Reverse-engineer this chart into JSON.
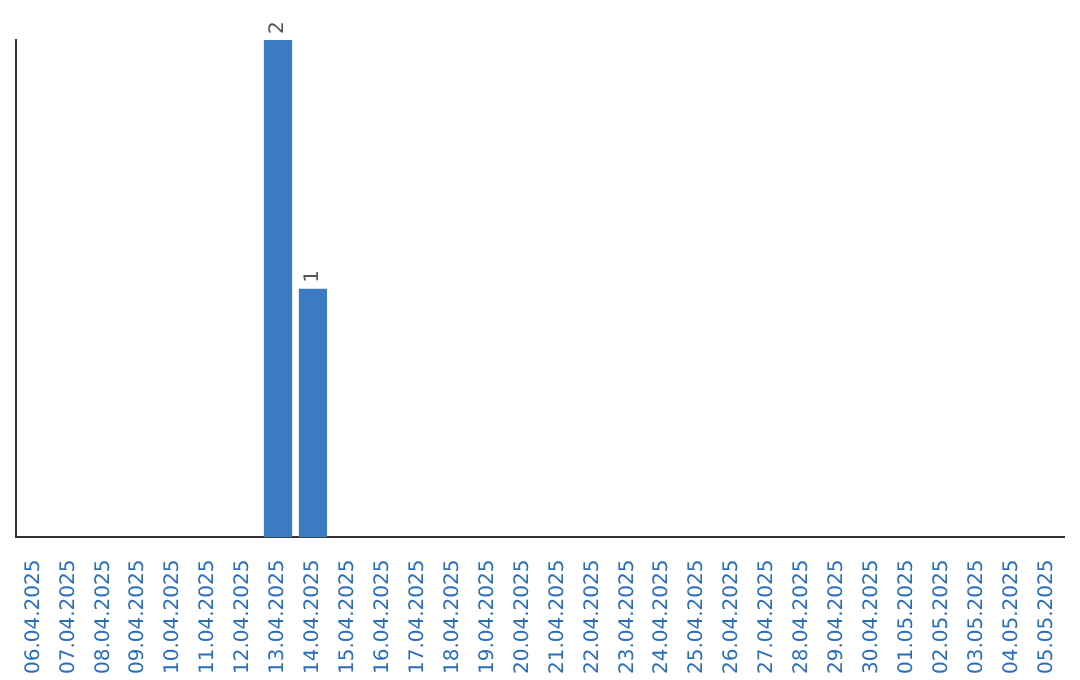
{
  "chart_data": {
    "type": "bar",
    "tick_labels": "x",
    "color": "#3a7bc4",
    "categories": [
      "06.04.2025",
      "07.04.2025",
      "08.04.2025",
      "09.04.2025",
      "10.04.2025",
      "11.04.2025",
      "12.04.2025",
      "13.04.2025",
      "14.04.2025",
      "15.04.2025",
      "16.04.2025",
      "17.04.2025",
      "18.04.2025",
      "19.04.2025",
      "20.04.2025",
      "21.04.2025",
      "22.04.2025",
      "23.04.2025",
      "24.04.2025",
      "25.04.2025",
      "26.04.2025",
      "27.04.2025",
      "28.04.2025",
      "29.04.2025",
      "30.04.2025",
      "01.05.2025",
      "02.05.2025",
      "03.05.2025",
      "04.05.2025",
      "05.05.2025"
    ],
    "values": [
      0,
      0,
      0,
      0,
      0,
      0,
      0,
      2,
      1,
      0,
      0,
      0,
      0,
      0,
      0,
      0,
      0,
      0,
      0,
      0,
      0,
      0,
      0,
      0,
      0,
      0,
      0,
      0,
      0,
      0
    ],
    "value_labels": [
      null,
      null,
      null,
      null,
      null,
      null,
      null,
      "2",
      "1",
      null,
      null,
      null,
      null,
      null,
      null,
      null,
      null,
      null,
      null,
      null,
      null,
      null,
      null,
      null,
      null,
      null,
      null,
      null,
      null,
      null
    ]
  }
}
